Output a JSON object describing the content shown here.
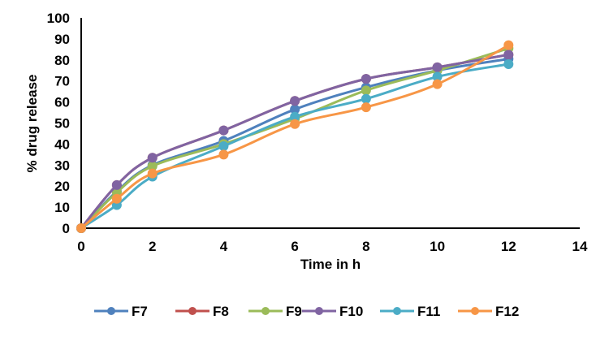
{
  "chart_data": {
    "type": "line",
    "title": "",
    "xlabel": "Time in h",
    "ylabel": "% drug release",
    "xlim": [
      0,
      14
    ],
    "ylim": [
      0,
      100
    ],
    "x_ticks": [
      0,
      2,
      4,
      6,
      8,
      10,
      12,
      14
    ],
    "y_ticks": [
      0,
      10,
      20,
      30,
      40,
      50,
      60,
      70,
      80,
      90,
      100
    ],
    "grid": false,
    "legend_position": "bottom",
    "x": [
      0,
      1,
      2,
      4,
      6,
      8,
      10,
      12
    ],
    "series": [
      {
        "name": "F7",
        "color": "#4F81BD",
        "values": [
          0,
          17.5,
          30,
          41.5,
          56.5,
          67,
          75,
          80.5
        ]
      },
      {
        "name": "F8",
        "color": "#C0504D",
        "values": [
          0,
          20.5,
          33.5,
          46.5,
          60.5,
          71,
          76.5,
          82.5
        ]
      },
      {
        "name": "F9",
        "color": "#9BBB59",
        "values": [
          0,
          17,
          29.5,
          40,
          52,
          65.5,
          75,
          85.5
        ]
      },
      {
        "name": "F10",
        "color": "#8064A2",
        "values": [
          0,
          20.5,
          33.5,
          46.5,
          60.5,
          71,
          76.5,
          82.5
        ]
      },
      {
        "name": "F11",
        "color": "#4BACC6",
        "values": [
          0,
          11,
          24.5,
          39,
          53,
          61.5,
          72,
          78
        ]
      },
      {
        "name": "F12",
        "color": "#F79646",
        "values": [
          0,
          14,
          26,
          35,
          49.5,
          57.5,
          68.5,
          87
        ]
      }
    ]
  }
}
